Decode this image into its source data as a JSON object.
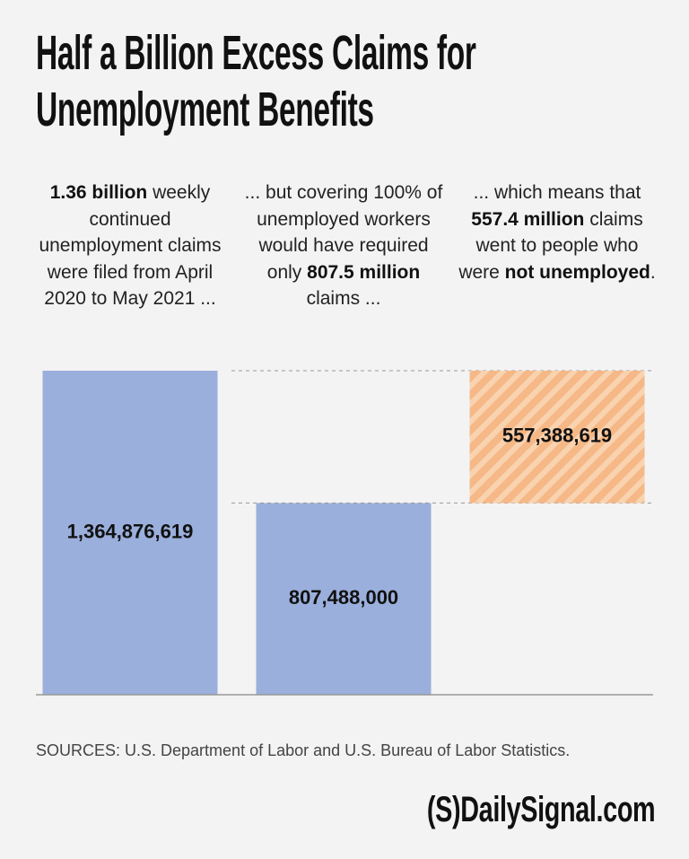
{
  "chart_data": {
    "type": "waterfall",
    "title": "Half a Billion Excess Claims for Unemployment Benefits",
    "annotations": [
      [
        {
          "text": "1.36 billion",
          "bold": true
        },
        {
          "text": " weekly continued unemployment claims were filed from April 2020 to May 2021 ..."
        }
      ],
      [
        {
          "text": "... but covering 100% of unemployed workers would have required only "
        },
        {
          "text": "807.5 million",
          "bold": true
        },
        {
          "text": " claims ..."
        }
      ],
      [
        {
          "text": "... which means that "
        },
        {
          "text": "557.4 million",
          "bold": true
        },
        {
          "text": " claims went to people who were "
        },
        {
          "text": "not unemployed",
          "bold": true
        },
        {
          "text": "."
        }
      ]
    ],
    "values": [
      1364876619,
      807488000,
      557388619
    ],
    "value_labels": [
      "1,364,876,619",
      "807,488,000",
      "557,388,619"
    ],
    "measure": [
      "absolute",
      "absolute",
      "relative"
    ],
    "colors": [
      "#9aafdb",
      "#9aafdb",
      "#f5b886"
    ],
    "source": "SOURCES: U.S. Department of Labor and U.S. Bureau of Labor Statistics.",
    "brand": "(S)DailySignal.com"
  }
}
